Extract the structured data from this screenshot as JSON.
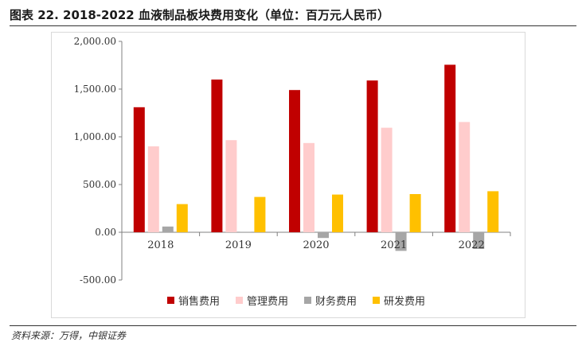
{
  "figure": {
    "title": "图表 22. 2018-2022 血液制品板块费用变化（单位：百万元人民币）",
    "source": "资料来源：万得，中银证券"
  },
  "chart_data": {
    "type": "bar",
    "categories": [
      "2018",
      "2019",
      "2020",
      "2021",
      "2022"
    ],
    "series": [
      {
        "name": "销售费用",
        "color": "#C00000",
        "values": [
          1310,
          1600,
          1490,
          1590,
          1755
        ]
      },
      {
        "name": "管理费用",
        "color": "#FFCCCC",
        "values": [
          900,
          965,
          935,
          1095,
          1155
        ]
      },
      {
        "name": "财务费用",
        "color": "#A6A6A6",
        "values": [
          60,
          5,
          -60,
          -195,
          -175
        ]
      },
      {
        "name": "研发费用",
        "color": "#FFC000",
        "values": [
          295,
          370,
          395,
          400,
          430
        ]
      }
    ],
    "ylim": [
      -500,
      2000
    ],
    "yticks": [
      -500,
      0,
      500,
      1000,
      1500,
      2000
    ],
    "ytick_labels": [
      "-500.00",
      "0.00",
      "500.00",
      "1,000.00",
      "1,500.00",
      "2,000.00"
    ],
    "xlabel": "",
    "ylabel": "",
    "grid": false,
    "legend_position": "bottom"
  }
}
